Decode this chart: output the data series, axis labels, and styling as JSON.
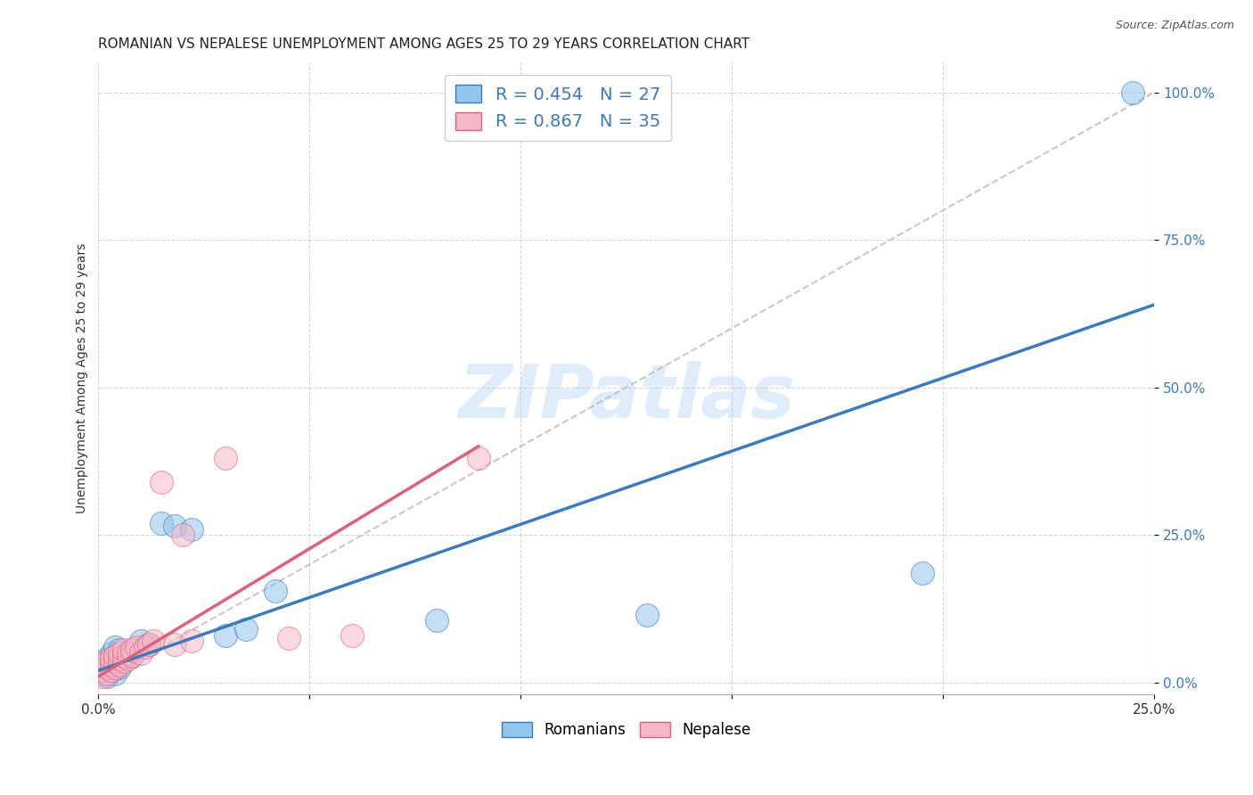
{
  "title": "ROMANIAN VS NEPALESE UNEMPLOYMENT AMONG AGES 25 TO 29 YEARS CORRELATION CHART",
  "source": "Source: ZipAtlas.com",
  "ylabel": "Unemployment Among Ages 25 to 29 years",
  "xlim": [
    0.0,
    0.25
  ],
  "ylim": [
    -0.02,
    1.05
  ],
  "blue_R": 0.454,
  "blue_N": 27,
  "pink_R": 0.867,
  "pink_N": 35,
  "blue_color": "#92c5f0",
  "pink_color": "#f5b8c8",
  "blue_line_color": "#3a7abf",
  "pink_line_color": "#e0607a",
  "watermark": "ZIPatlas",
  "blue_scatter_x": [
    0.001,
    0.001,
    0.002,
    0.002,
    0.002,
    0.003,
    0.003,
    0.003,
    0.004,
    0.004,
    0.005,
    0.005,
    0.006,
    0.007,
    0.008,
    0.01,
    0.012,
    0.015,
    0.018,
    0.022,
    0.03,
    0.035,
    0.042,
    0.08,
    0.13,
    0.195,
    0.245
  ],
  "blue_scatter_y": [
    0.015,
    0.025,
    0.01,
    0.03,
    0.04,
    0.02,
    0.035,
    0.05,
    0.015,
    0.06,
    0.025,
    0.055,
    0.04,
    0.05,
    0.045,
    0.07,
    0.065,
    0.27,
    0.265,
    0.26,
    0.08,
    0.09,
    0.155,
    0.105,
    0.115,
    0.185,
    1.0
  ],
  "pink_scatter_x": [
    0.001,
    0.001,
    0.001,
    0.002,
    0.002,
    0.002,
    0.003,
    0.003,
    0.003,
    0.004,
    0.004,
    0.004,
    0.005,
    0.005,
    0.005,
    0.006,
    0.006,
    0.006,
    0.007,
    0.007,
    0.008,
    0.008,
    0.009,
    0.01,
    0.011,
    0.012,
    0.013,
    0.015,
    0.018,
    0.02,
    0.022,
    0.03,
    0.045,
    0.06,
    0.09
  ],
  "pink_scatter_y": [
    0.01,
    0.02,
    0.03,
    0.015,
    0.025,
    0.035,
    0.02,
    0.03,
    0.04,
    0.025,
    0.035,
    0.045,
    0.03,
    0.04,
    0.05,
    0.035,
    0.045,
    0.055,
    0.04,
    0.05,
    0.045,
    0.055,
    0.06,
    0.05,
    0.06,
    0.065,
    0.07,
    0.34,
    0.065,
    0.25,
    0.07,
    0.38,
    0.075,
    0.08,
    0.38
  ],
  "blue_line_x0": 0.0,
  "blue_line_y0": 0.02,
  "blue_line_x1": 0.25,
  "blue_line_y1": 0.64,
  "pink_line_x0": 0.0,
  "pink_line_y0": 0.01,
  "pink_line_x1": 0.09,
  "pink_line_y1": 0.4,
  "title_fontsize": 11,
  "axis_label_fontsize": 10,
  "tick_fontsize": 11,
  "legend_fontsize": 14
}
